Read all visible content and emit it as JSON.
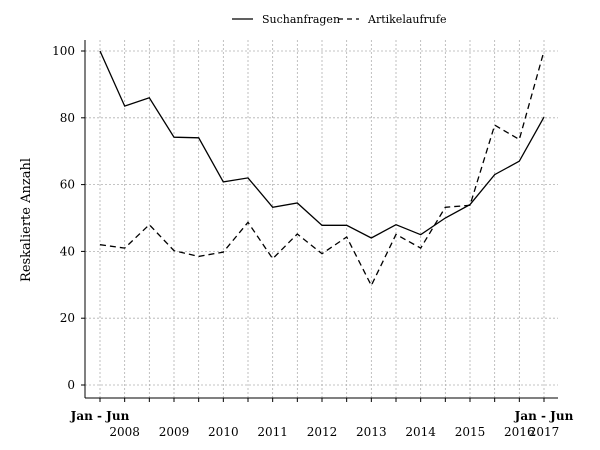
{
  "chart_data": {
    "type": "line",
    "ylabel": "Reskalierte Anzahl",
    "ylim": [
      0,
      100
    ],
    "y_ticks": [
      0,
      20,
      40,
      60,
      80,
      100
    ],
    "x_start_label": "Jan - Jun",
    "x_end_label": "Jan - Jun",
    "year_labels": [
      "2008",
      "2009",
      "2010",
      "2011",
      "2012",
      "2013",
      "2014",
      "2015",
      "2016",
      "2017"
    ],
    "grid": true,
    "legend_position": "top-center",
    "series": [
      {
        "name": "Suchanfragen",
        "style": "solid",
        "values": [
          100,
          83.5,
          86,
          74.2,
          74,
          60.8,
          62,
          53.2,
          54.5,
          47.8,
          47.8,
          44,
          48,
          45,
          50,
          54,
          63,
          67,
          80.2
        ]
      },
      {
        "name": "Artikelaufrufe",
        "style": "dashed",
        "values": [
          42,
          41,
          48,
          40.2,
          38.5,
          39.8,
          48.7,
          37.8,
          45.2,
          39.3,
          44.3,
          29.8,
          45.1,
          41,
          53.2,
          53.8,
          77.8,
          73.5,
          100
        ]
      }
    ]
  }
}
